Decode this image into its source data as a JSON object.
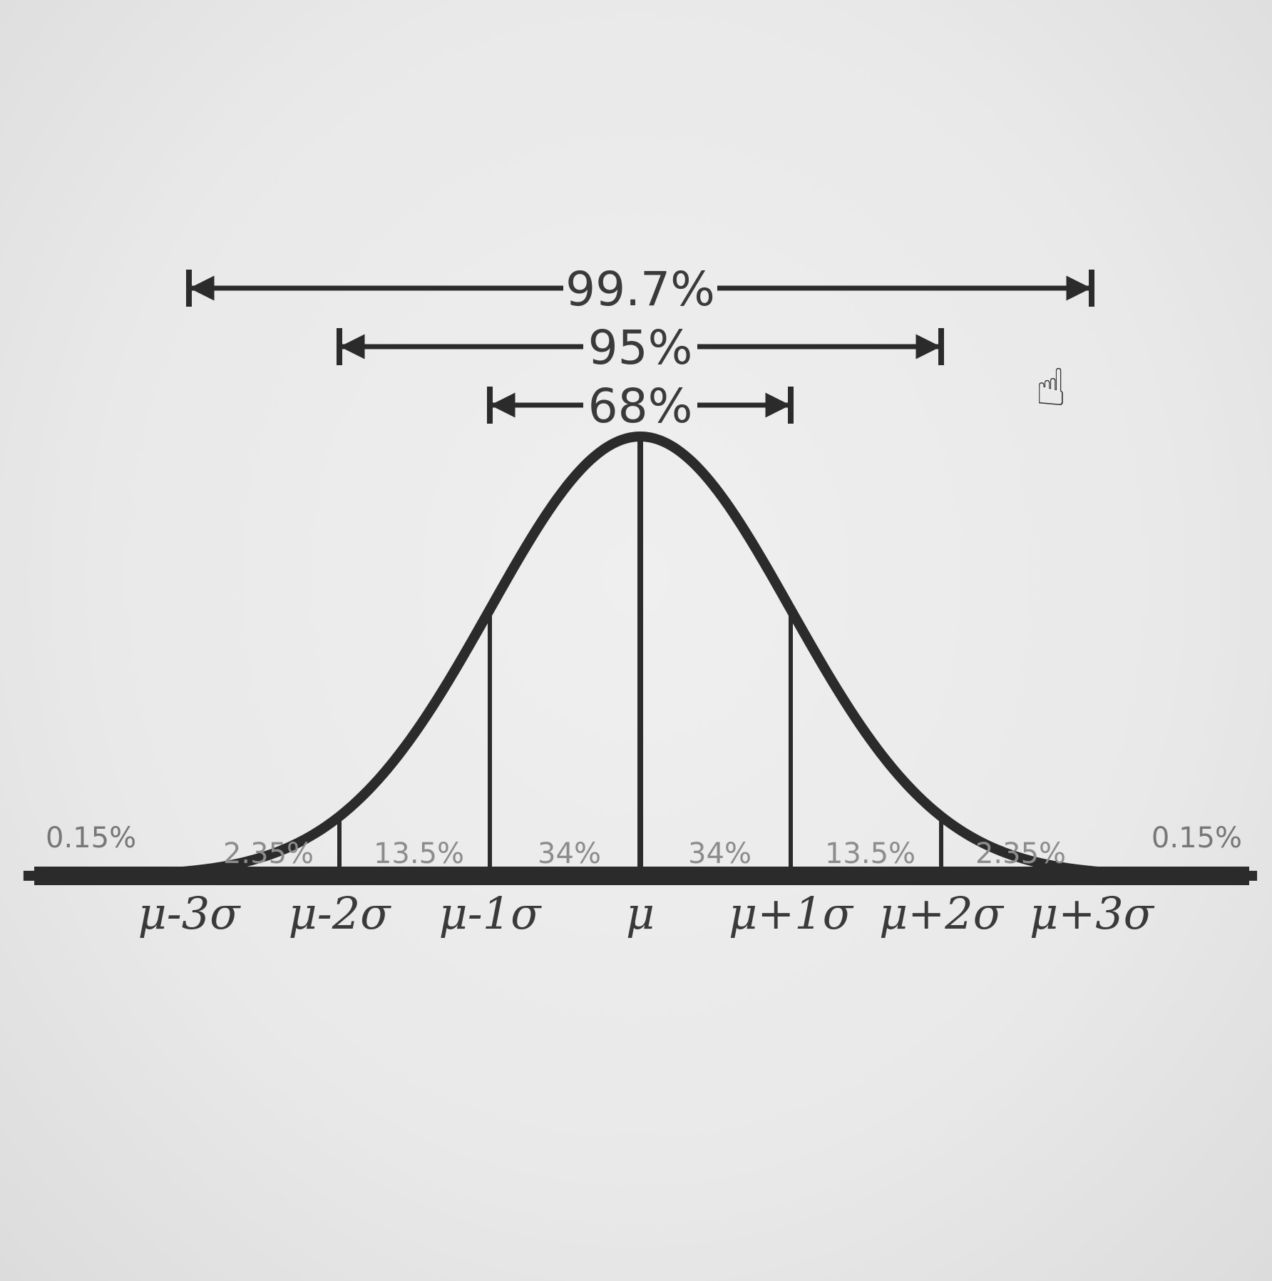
{
  "brackets": [
    {
      "label": "99.7%",
      "from": -3,
      "to": 3
    },
    {
      "label": "95%",
      "from": -2,
      "to": 2
    },
    {
      "label": "68%",
      "from": -1,
      "to": 1
    }
  ],
  "regions": [
    {
      "label": "2.35%",
      "from": -3,
      "to": -2
    },
    {
      "label": "13.5%",
      "from": -2,
      "to": -1
    },
    {
      "label": "34%",
      "from": -1,
      "to": 0
    },
    {
      "label": "34%",
      "from": 0,
      "to": 1
    },
    {
      "label": "13.5%",
      "from": 1,
      "to": 2
    },
    {
      "label": "2.35%",
      "from": 2,
      "to": 3
    }
  ],
  "tails": [
    {
      "label": "0.15%",
      "side": "left"
    },
    {
      "label": "0.15%",
      "side": "right"
    }
  ],
  "axis_labels": [
    {
      "label": "μ-3σ",
      "at": -3
    },
    {
      "label": "μ-2σ",
      "at": -2
    },
    {
      "label": "μ-1σ",
      "at": -1
    },
    {
      "label": "μ",
      "at": 0
    },
    {
      "label": "μ+1σ",
      "at": 1
    },
    {
      "label": "μ+2σ",
      "at": 2
    },
    {
      "label": "μ+3σ",
      "at": 3
    }
  ],
  "cursor": {
    "icon": "hand-pointer-icon",
    "glyph": "☝"
  },
  "colors": {
    "ink": "#2b2b2b",
    "region_text": "#8c8c8c",
    "background": "#e9e9e9"
  }
}
